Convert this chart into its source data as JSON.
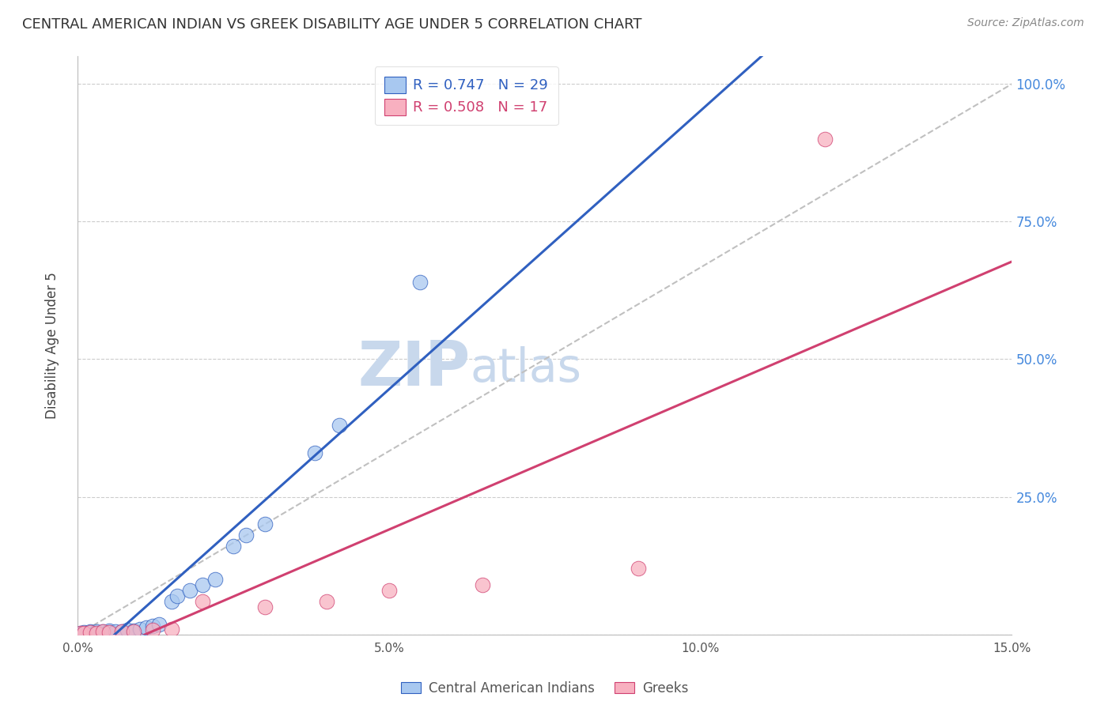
{
  "title": "CENTRAL AMERICAN INDIAN VS GREEK DISABILITY AGE UNDER 5 CORRELATION CHART",
  "source": "Source: ZipAtlas.com",
  "ylabel": "Disability Age Under 5",
  "xlim": [
    0.0,
    0.15
  ],
  "ylim": [
    0.0,
    1.05
  ],
  "xticks": [
    0.0,
    0.05,
    0.1,
    0.15
  ],
  "xtick_labels": [
    "0.0%",
    "5.0%",
    "10.0%",
    "15.0%"
  ],
  "yticks": [
    0.0,
    0.25,
    0.5,
    0.75,
    1.0
  ],
  "ytick_labels": [
    "",
    "25.0%",
    "50.0%",
    "75.0%",
    "100.0%"
  ],
  "blue_R": 0.747,
  "blue_N": 29,
  "pink_R": 0.508,
  "pink_N": 17,
  "blue_color": "#A8C8F0",
  "pink_color": "#F8B0C0",
  "blue_line_color": "#3060C0",
  "pink_line_color": "#D04070",
  "diagonal_color": "#C0C0C0",
  "watermark_color": "#C8D8EC",
  "blue_x": [
    0.0005,
    0.001,
    0.001,
    0.002,
    0.002,
    0.003,
    0.003,
    0.004,
    0.005,
    0.005,
    0.006,
    0.007,
    0.008,
    0.009,
    0.01,
    0.011,
    0.012,
    0.013,
    0.015,
    0.016,
    0.018,
    0.02,
    0.022,
    0.025,
    0.027,
    0.03,
    0.038,
    0.042,
    0.055
  ],
  "blue_y": [
    0.002,
    0.003,
    0.004,
    0.004,
    0.005,
    0.003,
    0.005,
    0.006,
    0.004,
    0.007,
    0.005,
    0.006,
    0.008,
    0.007,
    0.01,
    0.012,
    0.015,
    0.018,
    0.06,
    0.07,
    0.08,
    0.09,
    0.1,
    0.16,
    0.18,
    0.2,
    0.33,
    0.38,
    0.64
  ],
  "pink_x": [
    0.0005,
    0.001,
    0.002,
    0.003,
    0.004,
    0.005,
    0.007,
    0.009,
    0.012,
    0.015,
    0.02,
    0.03,
    0.04,
    0.05,
    0.065,
    0.09,
    0.12
  ],
  "pink_y": [
    0.003,
    0.003,
    0.004,
    0.003,
    0.005,
    0.004,
    0.006,
    0.005,
    0.008,
    0.01,
    0.06,
    0.05,
    0.06,
    0.08,
    0.09,
    0.12,
    0.9
  ],
  "legend_blue_label": "Central American Indians",
  "legend_pink_label": "Greeks"
}
